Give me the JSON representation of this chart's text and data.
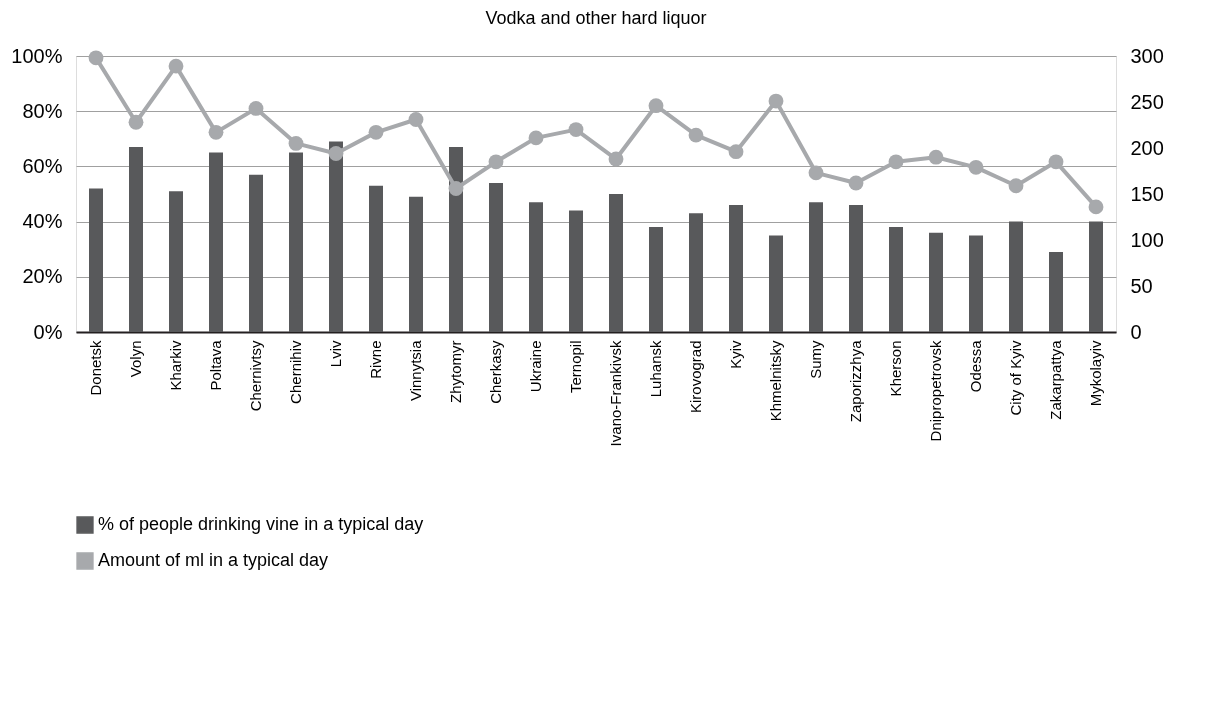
{
  "chart_data": {
    "type": "bar",
    "title": "Vodka and other hard liquor",
    "categories": [
      "Donetsk",
      "Volyn",
      "Kharkiv",
      "Poltava",
      "Chernivtsy",
      "Chernihiv",
      "Lviv",
      "Rivne",
      "Vinnytsia",
      "Zhytomyr",
      "Cherkasy",
      "Ukraine",
      "Ternopil",
      "Ivano-Frankivsk",
      "Luhansk",
      "Kirovograd",
      "Kyiv",
      "Khmelnitsky",
      "Sumy",
      "Zaporizzhya",
      "Kherson",
      "Dnipropetrovsk",
      "Odessa",
      "City of Kyiv",
      "Zakarpattya",
      "Mykolayiv"
    ],
    "series": [
      {
        "name": "% of people drinking vine in a typical day",
        "color": "#58595b",
        "values": [
          52,
          67,
          51,
          65,
          57,
          65,
          69,
          53,
          49,
          67,
          54,
          47,
          44,
          50,
          38,
          43,
          46,
          35,
          47,
          46,
          38,
          36,
          35,
          40,
          29,
          40
        ]
      },
      {
        "name": "Amount of ml in a typical day",
        "type": "line",
        "axis": "y2",
        "color": "#a7a9ac",
        "marker": "circle",
        "values": [
          298,
          228,
          289,
          217,
          243,
          205,
          194,
          217,
          231,
          156,
          185,
          211,
          220,
          188,
          246,
          214,
          196,
          251,
          173,
          162,
          185,
          190,
          179,
          159,
          185,
          136
        ]
      }
    ],
    "ylim": [
      0,
      100
    ],
    "yticks": [
      {
        "value": 0,
        "label": "0%"
      },
      {
        "value": 20,
        "label": "20%"
      },
      {
        "value": 40,
        "label": "40%"
      },
      {
        "value": 60,
        "label": "60%"
      },
      {
        "value": 80,
        "label": "80%"
      },
      {
        "value": 100,
        "label": "100%"
      }
    ],
    "y2lim": [
      0,
      300
    ],
    "y2ticks": [
      0,
      50,
      100,
      150,
      200,
      250,
      300
    ],
    "grid": "y",
    "legend": "bottom"
  }
}
